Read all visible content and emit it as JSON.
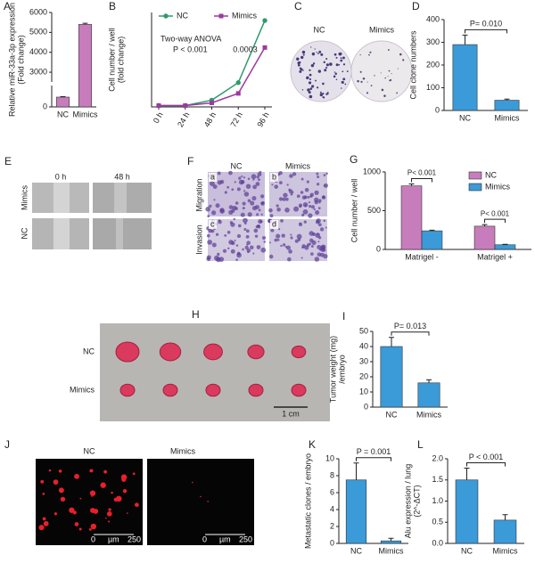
{
  "chart_data": [
    {
      "panel": "A",
      "type": "bar",
      "ylabel": [
        "Relative miR-33a-3p expression",
        "(Fold change)"
      ],
      "categories": [
        "NC",
        "Mimics"
      ],
      "values": [
        1,
        5400
      ],
      "errors": [
        0.05,
        60
      ],
      "color": "#c77dbb",
      "axis_segments": [
        {
          "ylim": [
            0,
            2
          ],
          "yticks": [
            0
          ]
        },
        {
          "ylim": [
            2600,
            6000
          ],
          "yticks": [
            3000,
            4000,
            5000,
            6000
          ]
        }
      ]
    },
    {
      "panel": "B",
      "type": "line",
      "ylabel": [
        "Cell number / well",
        "(fold change)"
      ],
      "categories": [
        "0 h",
        "24 h",
        "48 h",
        "72 h",
        "96 h"
      ],
      "ylim": [
        0,
        70
      ],
      "series": [
        {
          "name": "NC",
          "color": "#2e9b6b",
          "marker": "circle",
          "values": [
            1,
            1,
            5,
            18,
            64
          ]
        },
        {
          "name": "Mimics",
          "color": "#9b3a9e",
          "marker": "square",
          "values": [
            1,
            1,
            3,
            10,
            44
          ]
        }
      ],
      "annotations": [
        "Two-way  ANOVA",
        "P < 0.001",
        "0.0003"
      ]
    },
    {
      "panel": "D",
      "type": "bar",
      "ylabel": [
        "Cell clone numbers"
      ],
      "categories": [
        "NC",
        "Mimics"
      ],
      "values": [
        290,
        45
      ],
      "errors": [
        42,
        5
      ],
      "color": "#3b9ad8",
      "ylim": [
        0,
        400
      ],
      "yticks": [
        0,
        100,
        200,
        300,
        400
      ],
      "p_labels": [
        "P= 0.010"
      ]
    },
    {
      "panel": "G",
      "type": "bar",
      "ylabel": [
        "Cell number / well"
      ],
      "categories": [
        "Matrigel -",
        "Matrigel +"
      ],
      "ylim": [
        0,
        1000
      ],
      "yticks": [
        0,
        500,
        1000
      ],
      "series": [
        {
          "name": "NC",
          "color": "#c77dbb",
          "values": [
            820,
            300
          ],
          "errors": [
            25,
            20
          ]
        },
        {
          "name": "Mimics",
          "color": "#3b9ad8",
          "values": [
            240,
            60
          ],
          "errors": [
            8,
            6
          ]
        }
      ],
      "p_labels": [
        "P< 0.001",
        "P< 0.001"
      ]
    },
    {
      "panel": "I",
      "type": "bar",
      "ylabel": [
        "Tumor weight (mg)",
        "/embryo"
      ],
      "categories": [
        "NC",
        "Mimics"
      ],
      "values": [
        40,
        16
      ],
      "errors": [
        6,
        2
      ],
      "color": "#3b9ad8",
      "ylim": [
        0,
        50
      ],
      "yticks": [
        0,
        10,
        20,
        30,
        40,
        50
      ],
      "p_labels": [
        "P= 0.013"
      ]
    },
    {
      "panel": "K",
      "type": "bar",
      "ylabel": [
        "Metastatic clones / embryo"
      ],
      "categories": [
        "NC",
        "Mimics"
      ],
      "values": [
        7.5,
        0.3
      ],
      "errors": [
        2,
        0.3
      ],
      "color": "#3b9ad8",
      "ylim": [
        0,
        10
      ],
      "yticks": [
        0,
        2,
        4,
        6,
        8,
        10
      ],
      "p_labels": [
        "P = 0.001"
      ]
    },
    {
      "panel": "L",
      "type": "bar",
      "ylabel": [
        "Alu expression / lung",
        "(2^-ΔCT)"
      ],
      "categories": [
        "NC",
        "Mimics"
      ],
      "values": [
        1.5,
        0.55
      ],
      "errors": [
        0.28,
        0.13
      ],
      "color": "#3b9ad8",
      "ylim": [
        0,
        2
      ],
      "yticks": [
        {
          "value": 0,
          "label": "0.0"
        },
        0.5,
        {
          "value": 1,
          "label": "1.0"
        },
        1.5,
        {
          "value": 2,
          "label": "2.0"
        }
      ],
      "p_labels": [
        "P < 0.001"
      ]
    }
  ],
  "images": [
    {
      "panel": "C",
      "labels": [
        "NC",
        "Mimics"
      ]
    },
    {
      "panel": "E",
      "columns": [
        "0 h",
        "48 h"
      ],
      "rows": [
        "Mimics",
        "NC"
      ]
    },
    {
      "panel": "F",
      "columns": [
        "NC",
        "Mimics"
      ],
      "rows": [
        "Migration",
        "Invasion"
      ],
      "tiles": [
        "a",
        "b",
        "c",
        "d"
      ]
    },
    {
      "panel": "H",
      "rows": [
        "NC",
        "Mimics"
      ],
      "scale_bar": "1 cm"
    },
    {
      "panel": "J",
      "columns": [
        "NC",
        "Mimics"
      ],
      "scale": [
        "0",
        "µm",
        "250"
      ]
    }
  ]
}
